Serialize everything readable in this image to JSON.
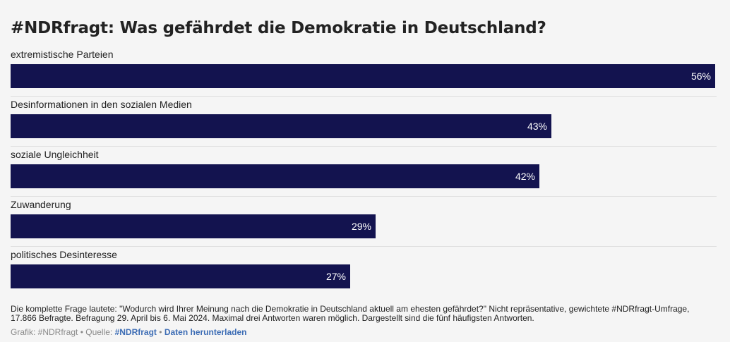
{
  "title": "#NDRfragt: Was gefährdet die Demokratie in Deutschland?",
  "chart_data": {
    "type": "bar",
    "orientation": "horizontal",
    "categories": [
      "extremistische Parteien",
      "Desinformationen in den sozialen Medien",
      "soziale Ungleichheit",
      "Zuwanderung",
      "politisches Desinteresse"
    ],
    "values": [
      56,
      43,
      42,
      29,
      27
    ],
    "value_labels": [
      "56%",
      "43%",
      "42%",
      "29%",
      "27%"
    ],
    "xlim": [
      0,
      56
    ],
    "bar_color": "#13134f",
    "grid": false,
    "legend": "none"
  },
  "note": "Die komplette Frage lautete: \"Wodurch wird Ihrer Meinung nach die Demokratie in Deutschland aktuell am ehesten gefährdet?\" Nicht repräsentative, gewichtete #NDRfragt-Umfrage, 17.866 Befragte. Befragung 29. April bis 6. Mai 2024. Maximal drei Antworten waren möglich. Dargestellt sind die fünf häufigsten Antworten.",
  "footer": {
    "graphic_prefix": "Grafik: #NDRfragt",
    "separator": " • ",
    "source_prefix": "Quelle: ",
    "source_link": "#NDRfragt",
    "download_link": "Daten herunterladen"
  }
}
